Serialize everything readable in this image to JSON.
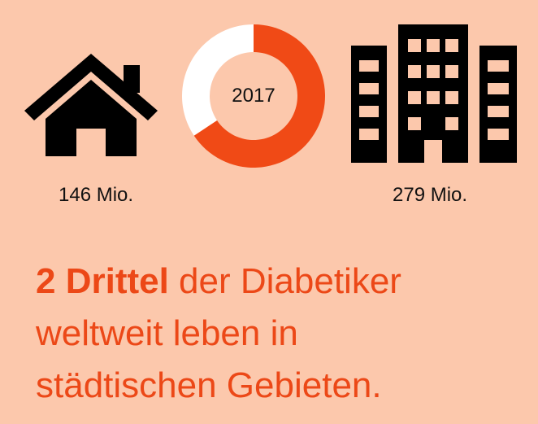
{
  "chart_data": {
    "type": "pie",
    "center_label": "2017",
    "slices": [
      {
        "label": "146 Mio.",
        "value": 146,
        "color": "#ffffff"
      },
      {
        "label": "279 Mio.",
        "value": 279,
        "color": "#f04a16"
      }
    ]
  },
  "icons": {
    "left": "house-icon",
    "right": "buildings-icon"
  },
  "headline": {
    "strong": "2 Drittel",
    "rest_line1": " der Diabetiker",
    "line2": "weltweit leben in",
    "line3": "städtischen Gebieten."
  },
  "colors": {
    "background": "#fcc8ac",
    "accent": "#ec4817",
    "text": "#111111"
  }
}
